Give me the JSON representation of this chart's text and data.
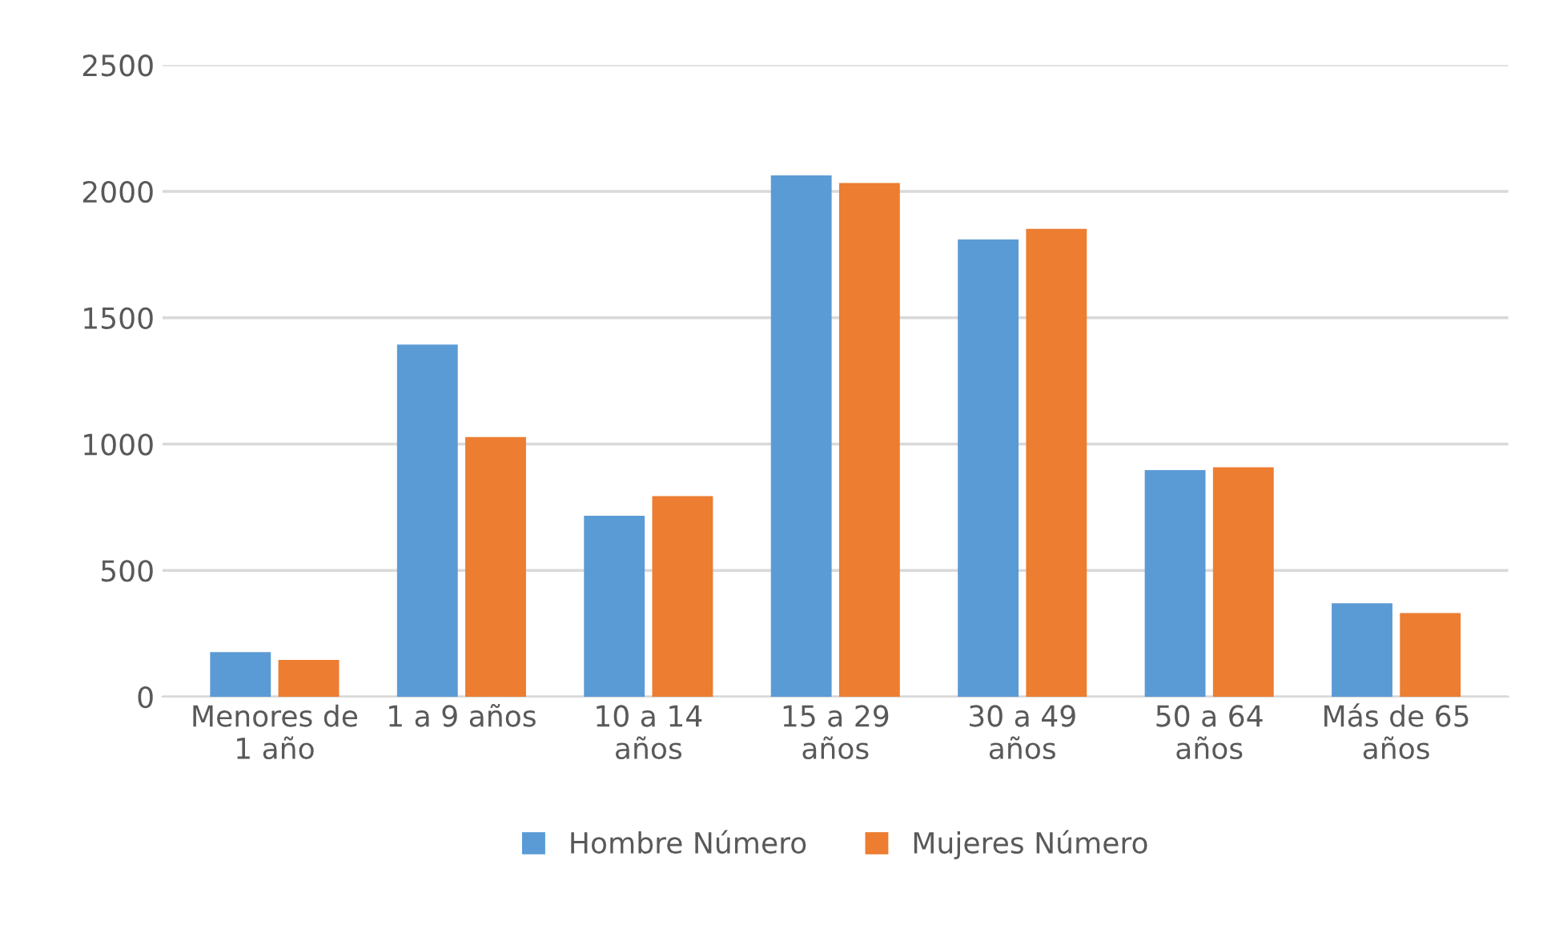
{
  "chart_data": {
    "type": "bar",
    "categories": [
      "Menores de\n1 año",
      "1 a 9 años",
      "10 a 14\naños",
      "15 a 29\naños",
      "30 a 49\naños",
      "50 a 64\naños",
      "Más de 65\naños"
    ],
    "series": [
      {
        "name": "Hombre Número",
        "color": "#5b9bd5",
        "values": [
          177,
          1394,
          716,
          2063,
          1810,
          897,
          370
        ]
      },
      {
        "name": "Mujeres Número",
        "color": "#ed7d31",
        "values": [
          146,
          1028,
          794,
          2033,
          1852,
          908,
          331
        ]
      }
    ],
    "ylim": [
      0,
      2500
    ],
    "yticks": [
      0,
      500,
      1000,
      1500,
      2000,
      2500
    ],
    "grid": "y",
    "legend": "bottom"
  }
}
